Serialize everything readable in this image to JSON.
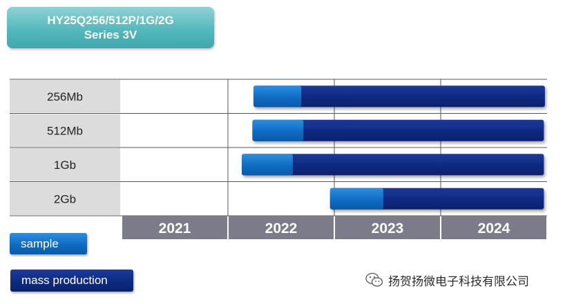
{
  "title": {
    "line1": "HY25Q256/512P/1G/2G",
    "line2": "Series 3V"
  },
  "chart_data": {
    "type": "bar",
    "categories": [
      "256Mb",
      "512Mb",
      "1Gb",
      "2Gb"
    ],
    "x_years": [
      "2021",
      "2022",
      "2023",
      "2024"
    ],
    "xlim": [
      2021.0,
      2025.0
    ],
    "series": [
      {
        "name": "sample",
        "color": "#0f6cc2",
        "ranges": [
          [
            2022.24,
            2022.69
          ],
          [
            2022.23,
            2022.71
          ],
          [
            2022.13,
            2022.61
          ],
          [
            2022.96,
            2023.46
          ]
        ]
      },
      {
        "name": "mass production",
        "color": "#0e2a80",
        "ranges": [
          [
            2022.69,
            2024.98
          ],
          [
            2022.71,
            2024.97
          ],
          [
            2022.61,
            2024.97
          ],
          [
            2023.46,
            2024.97
          ]
        ]
      }
    ],
    "grid": true
  },
  "legend": {
    "sample_label": "sample",
    "mass_label": "mass production"
  },
  "watermark": {
    "text": "扬贺扬微电子科技有限公司",
    "icon": "wechat-icon"
  }
}
